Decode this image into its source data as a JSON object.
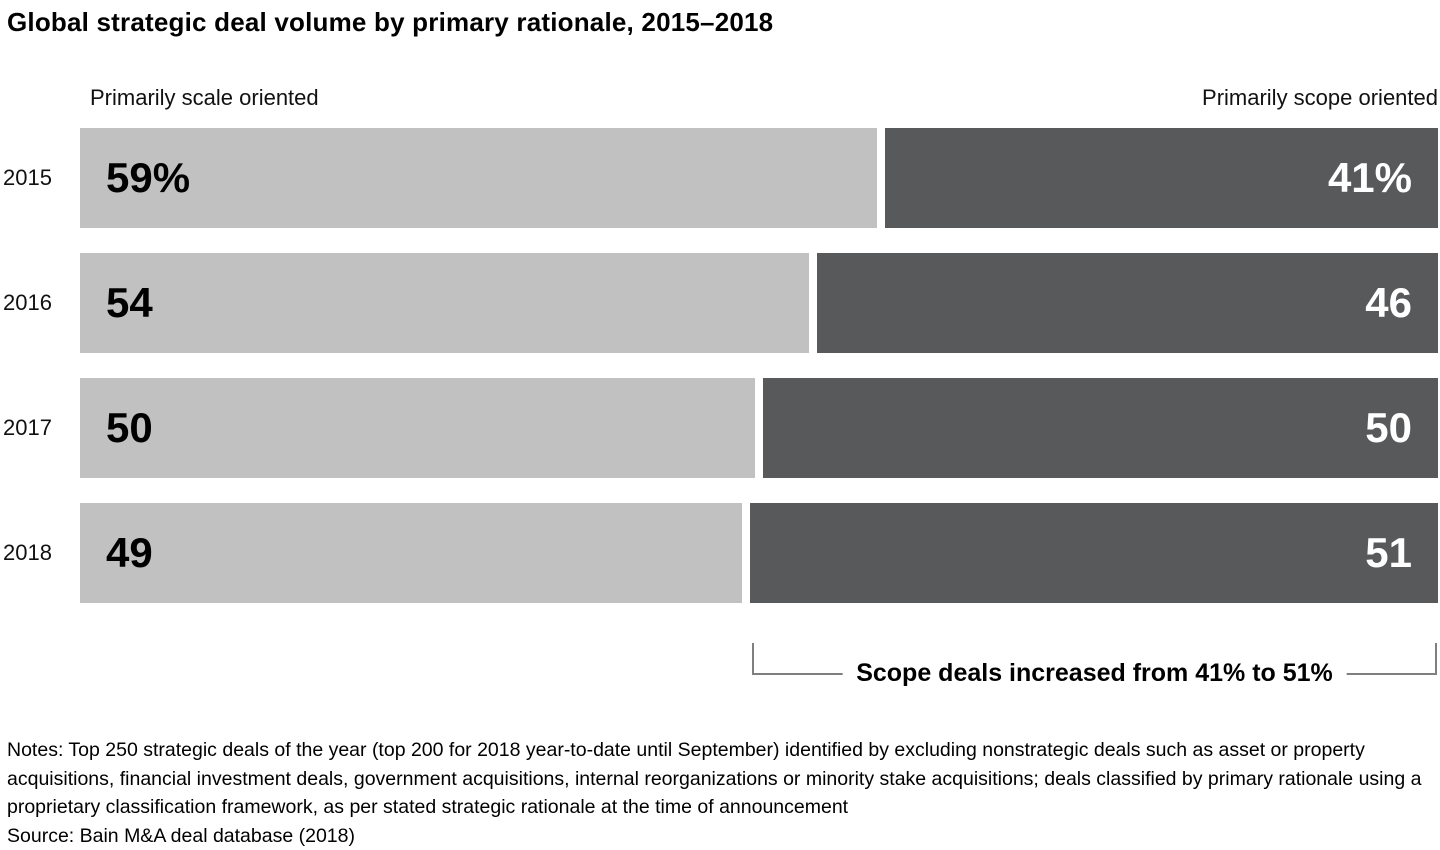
{
  "title": "Global strategic deal volume by primary rationale, 2015–2018",
  "axis_headers": {
    "left": "Primarily scale oriented",
    "right": "Primarily scope oriented"
  },
  "rows": [
    {
      "year": "2015",
      "scale": {
        "label": "59%",
        "value": 59
      },
      "scope": {
        "label": "41%",
        "value": 41
      }
    },
    {
      "year": "2016",
      "scale": {
        "label": "54",
        "value": 54
      },
      "scope": {
        "label": "46",
        "value": 46
      }
    },
    {
      "year": "2017",
      "scale": {
        "label": "50",
        "value": 50
      },
      "scope": {
        "label": "50",
        "value": 50
      }
    },
    {
      "year": "2018",
      "scale": {
        "label": "49",
        "value": 49
      },
      "scope": {
        "label": "51",
        "value": 51
      }
    }
  ],
  "annotation": {
    "label": "Scope deals increased from 41% to 51%"
  },
  "footnotes": {
    "notes": "Notes: Top 250 strategic deals of the year (top 200 for 2018 year-to-date until September) identified by excluding nonstrategic deals such as asset or property acquisitions, financial investment deals, government acquisitions, internal reorganizations or minority stake acquisitions; deals classified by primary rationale using a proprietary classification framework, as per stated strategic rationale at the time of announcement",
    "source": "Source: Bain M&A deal database (2018)"
  },
  "colors": {
    "scale_bar": "#c1c1c1",
    "scope_bar": "#58595b",
    "scale_label_text": "#000000",
    "scope_label_text": "#ffffff",
    "bracket_line": "#7f7f7f"
  },
  "chart_data": {
    "type": "bar",
    "orientation": "horizontal",
    "stacked": true,
    "title": "Global strategic deal volume by primary rationale, 2015–2018",
    "categories": [
      "2015",
      "2016",
      "2017",
      "2018"
    ],
    "series": [
      {
        "name": "Primarily scale oriented",
        "values": [
          59,
          54,
          50,
          49
        ],
        "color": "#c1c1c1",
        "data_labels": [
          "59%",
          "54",
          "50",
          "49"
        ]
      },
      {
        "name": "Primarily scope oriented",
        "values": [
          41,
          46,
          50,
          51
        ],
        "color": "#58595b",
        "data_labels": [
          "41%",
          "46",
          "50",
          "51"
        ]
      }
    ],
    "unit": "percent of deal volume",
    "xlim": [
      0,
      100
    ],
    "grid": false,
    "legend_position": "as column headers above bars",
    "annotations": [
      "Scope deals increased from 41% to 51%"
    ],
    "notes": "Notes: Top 250 strategic deals of the year (top 200 for 2018 year-to-date until September) identified by excluding nonstrategic deals such as asset or property acquisitions, financial investment deals, government acquisitions, internal reorganizations or minority stake acquisitions; deals classified by primary rationale using a proprietary classification framework, as per stated strategic rationale at the time of announcement",
    "source": "Source: Bain M&A deal database (2018)"
  }
}
